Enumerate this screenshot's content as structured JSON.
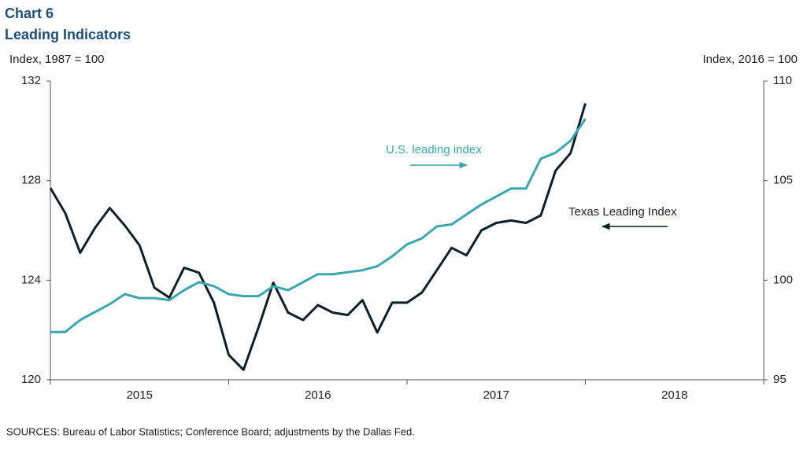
{
  "chart_data": {
    "type": "line",
    "title": "Chart 6",
    "subtitle": "Leading Indicators",
    "ylabel": "Index, 1987 = 100",
    "y2label": "Index, 2016 = 100",
    "source": "SOURCES: Bureau of Labor Statistics; Conference Board; adjustments by the Dallas Fed.",
    "annotations": [
      "U.S. leading index",
      "Texas Leading Index"
    ],
    "x": [
      2015,
      2015.083,
      2015.167,
      2015.25,
      2015.333,
      2015.417,
      2015.5,
      2015.583,
      2015.667,
      2015.75,
      2015.833,
      2015.917,
      2016,
      2016.083,
      2016.167,
      2016.25,
      2016.333,
      2016.417,
      2016.5,
      2016.583,
      2016.667,
      2016.75,
      2016.833,
      2016.917,
      2017,
      2017.083,
      2017.167,
      2017.25,
      2017.333,
      2017.417,
      2017.5,
      2017.583,
      2017.667,
      2017.75,
      2017.833,
      2017.917,
      2018
    ],
    "xlim": [
      2015,
      2019
    ],
    "xticks": [
      2015,
      2016,
      2017,
      2018,
      2019
    ],
    "year_labels": [
      2015,
      2016,
      2017,
      2018
    ],
    "ylim": [
      120,
      132
    ],
    "yticks": [
      120,
      124,
      128,
      132
    ],
    "y2lim": [
      95,
      110
    ],
    "y2ticks": [
      95,
      100,
      105,
      110
    ],
    "series": [
      {
        "name": "Texas Leading Index",
        "color": "#0d1f26",
        "axis": "y",
        "values": [
          127.7,
          126.7,
          125.1,
          126.1,
          126.9,
          126.2,
          125.4,
          123.7,
          123.3,
          124.5,
          124.3,
          123.1,
          121.0,
          120.4,
          122.1,
          123.9,
          122.7,
          122.4,
          123.0,
          122.7,
          122.6,
          123.2,
          121.9,
          123.1,
          123.1,
          123.5,
          124.4,
          125.3,
          125.0,
          126.0,
          126.3,
          126.4,
          126.3,
          126.6,
          128.4,
          129.1,
          131.1
        ]
      },
      {
        "name": "U.S. leading index",
        "color": "#3aa6ad",
        "axis": "y2",
        "values": [
          97.4,
          97.4,
          98.0,
          98.4,
          98.8,
          99.3,
          99.1,
          99.1,
          99.0,
          99.5,
          99.9,
          99.7,
          99.3,
          99.2,
          99.2,
          99.7,
          99.5,
          99.9,
          100.3,
          100.3,
          100.4,
          100.5,
          100.7,
          101.2,
          101.8,
          102.1,
          102.7,
          102.8,
          103.3,
          103.8,
          104.2,
          104.6,
          104.6,
          106.1,
          106.4,
          107.0,
          108.1
        ]
      }
    ]
  }
}
